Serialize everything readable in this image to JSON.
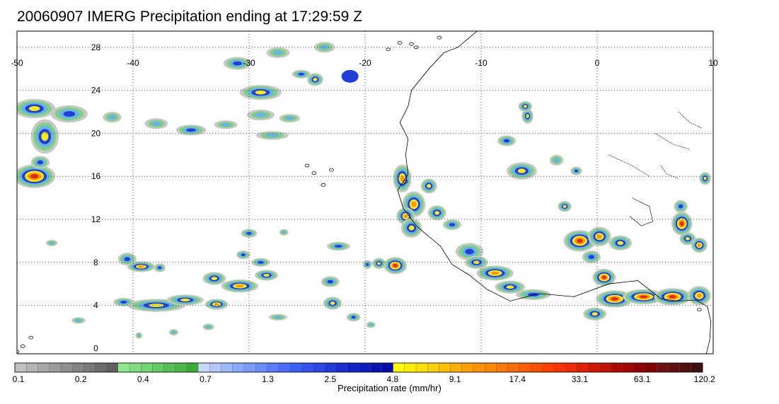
{
  "title": "20060907 IMERG Precipitation ending at 17:29:59 Z",
  "map": {
    "lon_range": [
      -50,
      10
    ],
    "lat_range": [
      -0.5,
      29.5
    ],
    "lon_ticks": [
      "-50",
      "-40",
      "-30",
      "-20",
      "-10",
      "0",
      "10"
    ],
    "lat_ticks": [
      "28",
      "24",
      "20",
      "16",
      "12",
      "8",
      "4",
      "0"
    ],
    "gridline_style": "dotted",
    "colors": {
      "light_gray": "#c8c8c8",
      "green": "#7fd07f",
      "light_blue": "#6ab0f0",
      "blue": "#1f3fd8",
      "dark_blue": "#0a1aa8",
      "yellow": "#ffee00",
      "orange": "#ff9900",
      "red": "#e62a10",
      "coast": "#000000"
    }
  },
  "colorbar": {
    "label": "Precipitation rate (mm/hr)",
    "tick_labels": [
      "0.1",
      "0.2",
      "0.4",
      "0.7",
      "1.3",
      "2.5",
      "4.8",
      "9.1",
      "17.4",
      "33.1",
      "63.1",
      "120.2"
    ],
    "colors": [
      "#c0c0c0",
      "#b4b4b4",
      "#a8a8a8",
      "#9c9c9c",
      "#909090",
      "#848484",
      "#787878",
      "#6c6c6c",
      "#606060",
      "#8ee88e",
      "#80de80",
      "#72d472",
      "#64ca64",
      "#56c056",
      "#48b648",
      "#3aac3a",
      "#c8d8ff",
      "#b4c8ff",
      "#a0b8ff",
      "#8aa8ff",
      "#7a9cff",
      "#6a8cff",
      "#5a7cff",
      "#4a6cff",
      "#3e5ef8",
      "#3452ee",
      "#2a46e4",
      "#203ada",
      "#182ed0",
      "#1224c6",
      "#0c1cbc",
      "#0814b2",
      "#040ca8",
      "#ffff00",
      "#ffee00",
      "#ffe000",
      "#ffd000",
      "#ffc000",
      "#ffb000",
      "#ffa000",
      "#ff9400",
      "#ff8800",
      "#ff7a00",
      "#ff6c00",
      "#ff5e00",
      "#ff5000",
      "#ff4200",
      "#ff3400",
      "#f02a00",
      "#e02000",
      "#d01800",
      "#c01000",
      "#b00800",
      "#a00000",
      "#900000",
      "#800000",
      "#701010",
      "#601010",
      "#501010",
      "#401010"
    ]
  }
}
